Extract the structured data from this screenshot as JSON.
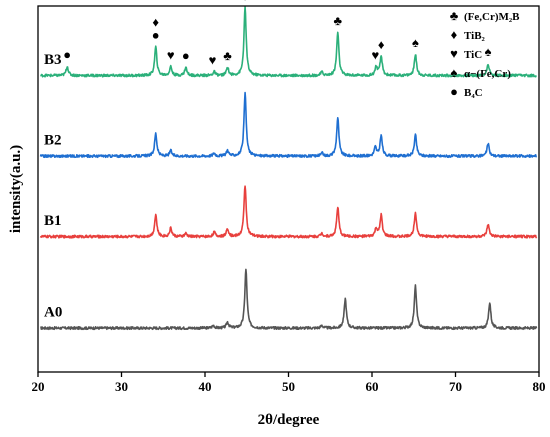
{
  "chart_data": {
    "type": "line",
    "xlabel": "2θ/degree",
    "ylabel": "intensity(a.u.)",
    "xlim": [
      20,
      80
    ],
    "xticks": [
      "20",
      "30",
      "40",
      "50",
      "60",
      "70",
      "80"
    ],
    "ylim": [
      0,
      100
    ],
    "grid": false,
    "legend": {
      "placement": "top-right",
      "entries": [
        {
          "symbol": "club",
          "glyph": "♣",
          "label": "(Fe,Cr)M₂B"
        },
        {
          "symbol": "diamond",
          "glyph": "♦",
          "label": "TiB₂"
        },
        {
          "symbol": "heart",
          "glyph": "♥",
          "label": "TiC"
        },
        {
          "symbol": "spade",
          "glyph": "♠",
          "label": "α−(Fe,Cr)"
        },
        {
          "symbol": "dot",
          "glyph": "●",
          "label": "B₄C"
        }
      ]
    },
    "series": [
      {
        "name": "A0",
        "color": "#555555",
        "baseline": 12,
        "peaks": [
          [
            41.0,
            0.7
          ],
          [
            42.7,
            1.6
          ],
          [
            44.9,
            16
          ],
          [
            54.0,
            0.7
          ],
          [
            56.8,
            8
          ],
          [
            65.2,
            11.5
          ],
          [
            74.1,
            7
          ]
        ]
      },
      {
        "name": "B1",
        "color": "#e8403d",
        "baseline": 37,
        "peaks": [
          [
            34.1,
            6
          ],
          [
            35.9,
            2.3
          ],
          [
            37.7,
            0.8
          ],
          [
            41.1,
            1.2
          ],
          [
            42.7,
            2.2
          ],
          [
            44.8,
            14
          ],
          [
            54.0,
            0.9
          ],
          [
            55.9,
            8
          ],
          [
            60.5,
            2.2
          ],
          [
            61.1,
            5.8
          ],
          [
            65.2,
            6.7
          ],
          [
            73.9,
            3.3
          ]
        ]
      },
      {
        "name": "B2",
        "color": "#1f6fd1",
        "baseline": 59,
        "peaks": [
          [
            34.1,
            6.2
          ],
          [
            35.9,
            1.5
          ],
          [
            41.1,
            0.8
          ],
          [
            42.7,
            1.6
          ],
          [
            44.8,
            17
          ],
          [
            54.0,
            0.8
          ],
          [
            55.9,
            10.5
          ],
          [
            60.4,
            2.4
          ],
          [
            61.1,
            5.5
          ],
          [
            65.2,
            5.8
          ],
          [
            73.9,
            3.4
          ]
        ]
      },
      {
        "name": "B3",
        "color": "#2bb07a",
        "baseline": 81,
        "peaks": [
          [
            23.5,
            2.5
          ],
          [
            34.1,
            7.8
          ],
          [
            35.9,
            2.4
          ],
          [
            37.7,
            2.2
          ],
          [
            41.1,
            1.0
          ],
          [
            42.7,
            2.2
          ],
          [
            44.8,
            18.5
          ],
          [
            54.0,
            0.9
          ],
          [
            55.9,
            11.8
          ],
          [
            60.5,
            2.4
          ],
          [
            61.1,
            5.2
          ],
          [
            65.2,
            5.8
          ],
          [
            73.9,
            3.3
          ]
        ]
      }
    ],
    "markers": [
      {
        "x": 23.5,
        "glyph": "●"
      },
      {
        "x": 34.1,
        "glyph": "●"
      },
      {
        "x": 34.1,
        "glyph": "♦"
      },
      {
        "x": 35.9,
        "glyph": "♥"
      },
      {
        "x": 37.7,
        "glyph": "●"
      },
      {
        "x": 40.9,
        "glyph": "♥"
      },
      {
        "x": 42.7,
        "glyph": "♣"
      },
      {
        "x": 44.8,
        "glyph": "♦"
      },
      {
        "x": 44.8,
        "glyph": "♠"
      },
      {
        "x": 44.8,
        "glyph": "♣"
      },
      {
        "x": 55.9,
        "glyph": "♣"
      },
      {
        "x": 60.4,
        "glyph": "♥"
      },
      {
        "x": 61.1,
        "glyph": "♦"
      },
      {
        "x": 65.2,
        "glyph": "♠"
      },
      {
        "x": 73.9,
        "glyph": "♠"
      }
    ]
  }
}
